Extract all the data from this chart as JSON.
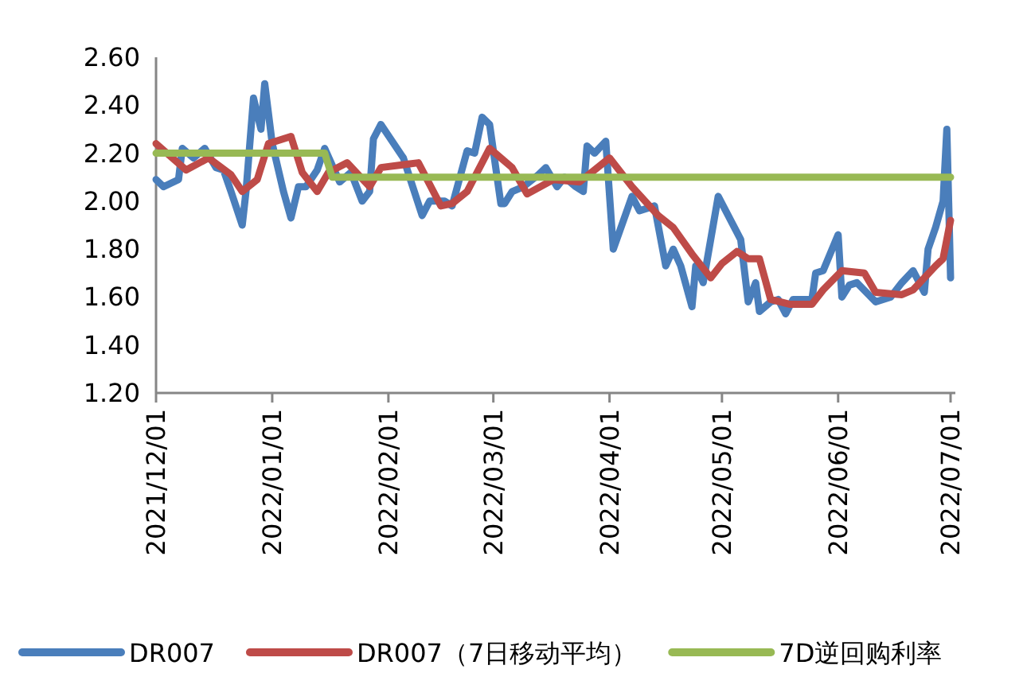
{
  "chart_data": {
    "type": "line",
    "xlim": [
      "2021-12-01",
      "2022-07-01"
    ],
    "ylim": [
      1.2,
      2.6
    ],
    "xticks": [
      {
        "value": "2021-12-01",
        "label": "2021/12/01"
      },
      {
        "value": "2022-01-01",
        "label": "2022/01/01"
      },
      {
        "value": "2022-02-01",
        "label": "2022/02/01"
      },
      {
        "value": "2022-03-01",
        "label": "2022/03/01"
      },
      {
        "value": "2022-04-01",
        "label": "2022/04/01"
      },
      {
        "value": "2022-05-01",
        "label": "2022/05/01"
      },
      {
        "value": "2022-06-01",
        "label": "2022/06/01"
      },
      {
        "value": "2022-07-01",
        "label": "2022/07/01"
      }
    ],
    "yticks": [
      {
        "value": 1.2,
        "label": "1.20"
      },
      {
        "value": 1.4,
        "label": "1.40"
      },
      {
        "value": 1.6,
        "label": "1.60"
      },
      {
        "value": 1.8,
        "label": "1.80"
      },
      {
        "value": 2.0,
        "label": "2.00"
      },
      {
        "value": 2.2,
        "label": "2.20"
      },
      {
        "value": 2.4,
        "label": "2.40"
      },
      {
        "value": 2.6,
        "label": "2.60"
      }
    ],
    "legend": "bottom",
    "line_style": "solid",
    "grid": false,
    "series": [
      {
        "name": "DR007",
        "color": "#4a7ebb",
        "x": [
          "2021-12-01",
          "2021-12-03",
          "2021-12-07",
          "2021-12-08",
          "2021-12-11",
          "2021-12-14",
          "2021-12-17",
          "2021-12-19",
          "2021-12-21",
          "2021-12-24",
          "2021-12-25",
          "2021-12-27",
          "2021-12-29",
          "2021-12-30",
          "2022-01-01",
          "2022-01-04",
          "2022-01-06",
          "2022-01-08",
          "2022-01-10",
          "2022-01-13",
          "2022-01-15",
          "2022-01-19",
          "2022-01-22",
          "2022-01-25",
          "2022-01-27",
          "2022-01-28",
          "2022-01-30",
          "2022-02-05",
          "2022-02-10",
          "2022-02-12",
          "2022-02-16",
          "2022-02-18",
          "2022-02-22",
          "2022-02-24",
          "2022-02-26",
          "2022-02-28",
          "2022-03-03",
          "2022-03-04",
          "2022-03-06",
          "2022-03-09",
          "2022-03-13",
          "2022-03-15",
          "2022-03-18",
          "2022-03-20",
          "2022-03-23",
          "2022-03-25",
          "2022-03-26",
          "2022-03-28",
          "2022-03-31",
          "2022-04-02",
          "2022-04-07",
          "2022-04-09",
          "2022-04-13",
          "2022-04-16",
          "2022-04-18",
          "2022-04-20",
          "2022-04-23",
          "2022-04-24",
          "2022-04-26",
          "2022-04-30",
          "2022-05-06",
          "2022-05-08",
          "2022-05-10",
          "2022-05-11",
          "2022-05-14",
          "2022-05-16",
          "2022-05-18",
          "2022-05-20",
          "2022-05-25",
          "2022-05-26",
          "2022-05-28",
          "2022-06-01",
          "2022-06-02",
          "2022-06-04",
          "2022-06-06",
          "2022-06-11",
          "2022-06-15",
          "2022-06-18",
          "2022-06-21",
          "2022-06-24",
          "2022-06-25",
          "2022-06-27",
          "2022-06-29",
          "2022-06-30",
          "2022-07-01"
        ],
        "values": [
          2.09,
          2.06,
          2.09,
          2.22,
          2.18,
          2.22,
          2.14,
          2.13,
          2.04,
          1.9,
          2.04,
          2.43,
          2.3,
          2.49,
          2.24,
          2.04,
          1.93,
          2.06,
          2.06,
          2.13,
          2.22,
          2.08,
          2.12,
          2.0,
          2.04,
          2.26,
          2.32,
          2.18,
          1.94,
          2.0,
          2.0,
          1.98,
          2.21,
          2.2,
          2.35,
          2.32,
          1.99,
          1.99,
          2.04,
          2.06,
          2.11,
          2.14,
          2.06,
          2.1,
          2.06,
          2.04,
          2.23,
          2.2,
          2.25,
          1.8,
          2.02,
          1.96,
          1.98,
          1.73,
          1.8,
          1.73,
          1.56,
          1.73,
          1.66,
          2.02,
          1.84,
          1.58,
          1.66,
          1.54,
          1.58,
          1.59,
          1.53,
          1.59,
          1.59,
          1.7,
          1.71,
          1.86,
          1.6,
          1.65,
          1.66,
          1.58,
          1.6,
          1.66,
          1.71,
          1.62,
          1.8,
          1.89,
          2.0,
          2.3,
          1.68
        ]
      },
      {
        "name": "DR007（7日移动平均）",
        "color": "#be4b48",
        "x": [
          "2021-12-01",
          "2021-12-09",
          "2021-12-15",
          "2021-12-21",
          "2021-12-24",
          "2021-12-28",
          "2021-12-31",
          "2022-01-06",
          "2022-01-09",
          "2022-01-13",
          "2022-01-16",
          "2022-01-21",
          "2022-01-27",
          "2022-01-30",
          "2022-02-09",
          "2022-02-15",
          "2022-02-18",
          "2022-02-22",
          "2022-02-28",
          "2022-03-06",
          "2022-03-10",
          "2022-03-17",
          "2022-03-24",
          "2022-04-01",
          "2022-04-07",
          "2022-04-14",
          "2022-04-18",
          "2022-04-23",
          "2022-04-28",
          "2022-05-01",
          "2022-05-05",
          "2022-05-08",
          "2022-05-11",
          "2022-05-14",
          "2022-05-19",
          "2022-05-25",
          "2022-05-28",
          "2022-06-02",
          "2022-06-08",
          "2022-06-11",
          "2022-06-18",
          "2022-06-21",
          "2022-06-27",
          "2022-06-29",
          "2022-07-01"
        ],
        "values": [
          2.24,
          2.13,
          2.18,
          2.11,
          2.04,
          2.09,
          2.24,
          2.27,
          2.12,
          2.04,
          2.12,
          2.16,
          2.06,
          2.14,
          2.16,
          1.98,
          1.99,
          2.04,
          2.22,
          2.14,
          2.03,
          2.09,
          2.08,
          2.18,
          2.06,
          1.94,
          1.89,
          1.78,
          1.68,
          1.74,
          1.79,
          1.76,
          1.76,
          1.59,
          1.57,
          1.57,
          1.63,
          1.71,
          1.7,
          1.62,
          1.61,
          1.63,
          1.73,
          1.76,
          1.92
        ]
      },
      {
        "name": "7D逆回购利率",
        "color": "#98b954",
        "x": [
          "2021-12-01",
          "2022-01-15",
          "2022-01-17",
          "2022-07-01"
        ],
        "values": [
          2.2,
          2.2,
          2.1,
          2.1
        ]
      }
    ]
  }
}
